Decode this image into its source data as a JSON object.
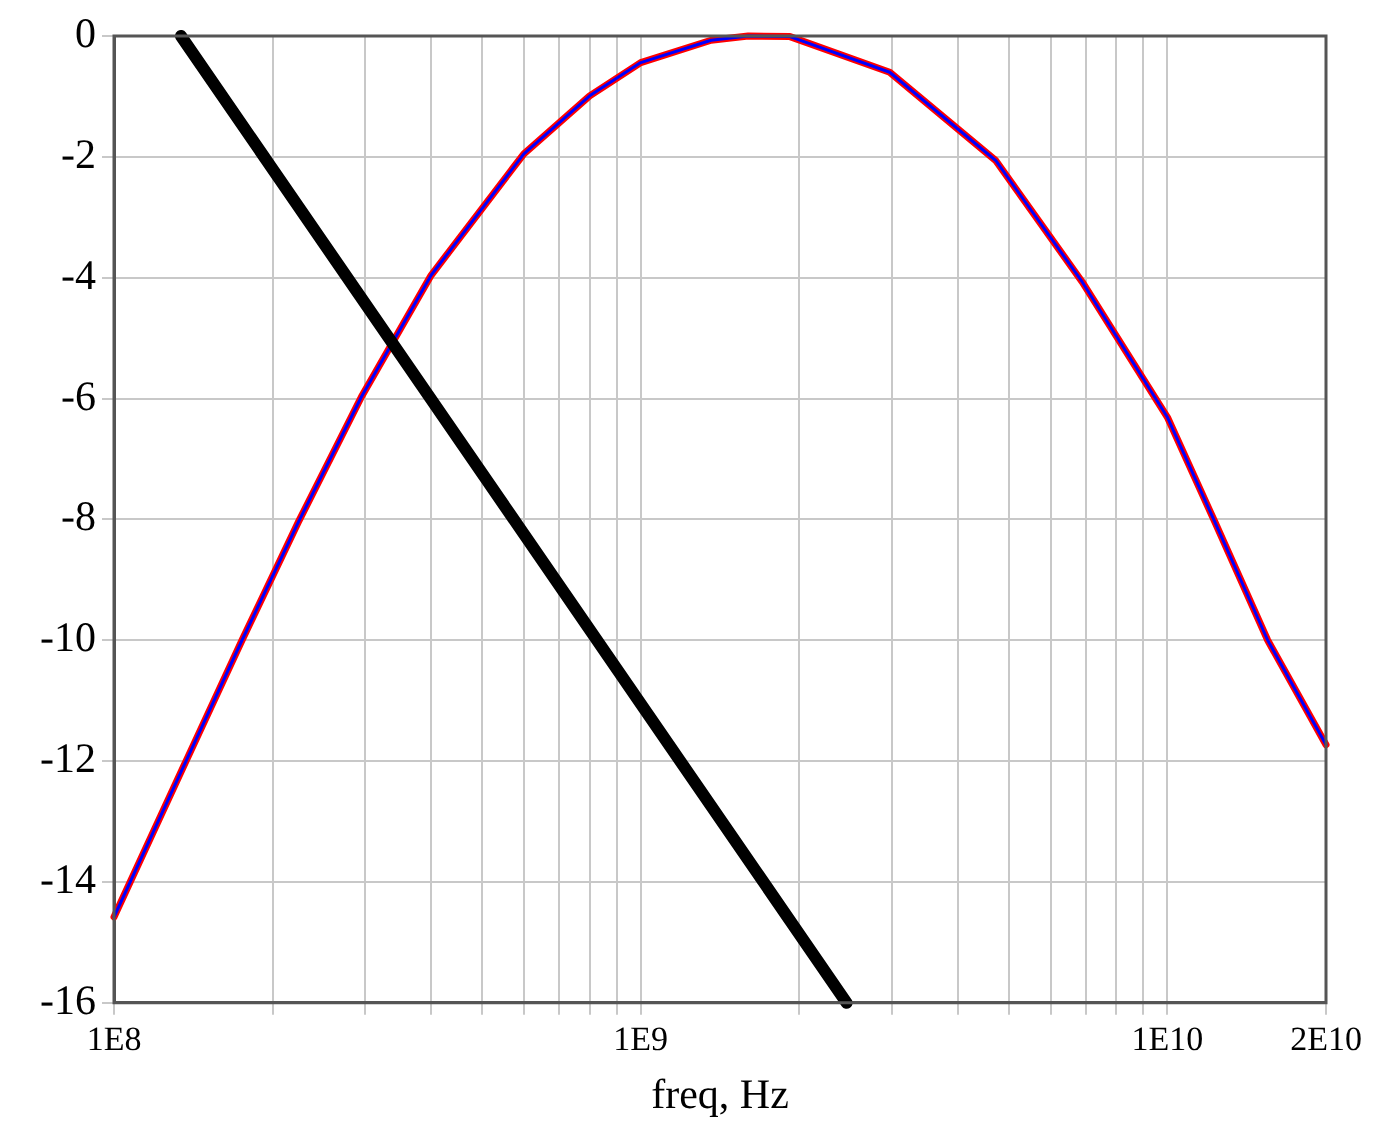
{
  "chart_data": {
    "type": "line",
    "xlabel": "freq, Hz",
    "log": "x",
    "grid": true,
    "legend": false,
    "marker": "none",
    "line_style": "solid",
    "xlim": [
      100000000.0,
      20000000000.0
    ],
    "ylim": [
      -16,
      0
    ],
    "xticks": [
      {
        "value": 100000000.0,
        "label": "1E8"
      },
      {
        "value": 200000000.0,
        "label": null
      },
      {
        "value": 300000000.0,
        "label": null
      },
      {
        "value": 400000000.0,
        "label": null
      },
      {
        "value": 500000000.0,
        "label": null
      },
      {
        "value": 600000000.0,
        "label": null
      },
      {
        "value": 700000000.0,
        "label": null
      },
      {
        "value": 800000000.0,
        "label": null
      },
      {
        "value": 900000000.0,
        "label": null
      },
      {
        "value": 1000000000.0,
        "label": "1E9"
      },
      {
        "value": 2000000000.0,
        "label": null
      },
      {
        "value": 3000000000.0,
        "label": null
      },
      {
        "value": 4000000000.0,
        "label": null
      },
      {
        "value": 5000000000.0,
        "label": null
      },
      {
        "value": 6000000000.0,
        "label": null
      },
      {
        "value": 7000000000.0,
        "label": null
      },
      {
        "value": 8000000000.0,
        "label": null
      },
      {
        "value": 9000000000.0,
        "label": null
      },
      {
        "value": 10000000000.0,
        "label": "1E10"
      },
      {
        "value": 20000000000.0,
        "label": "2E10"
      }
    ],
    "yticks": [
      -16,
      -14,
      -12,
      -10,
      -8,
      -6,
      -4,
      -2,
      0
    ],
    "x": [
      100000000.0,
      137000000.0,
      175000000.0,
      224000000.0,
      295000000.0,
      400000000.0,
      600000000.0,
      800000000.0,
      1000000000.0,
      1360000000.0,
      1600000000.0,
      1920000000.0,
      2970000000.0,
      4720000000.0,
      6890000000.0,
      10000000000.0,
      12300000000.0,
      15500000000.0,
      20000000000.0
    ],
    "series": [
      {
        "color": "#ff0000",
        "values": [
          -14.58,
          -12.0,
          -10.0,
          -8.04,
          -5.97,
          -3.96,
          -1.95,
          -0.99,
          -0.44,
          -0.07,
          0,
          -0.01,
          -0.6,
          -2.06,
          -4.07,
          -6.31,
          -8.04,
          -10.0,
          -11.73
        ]
      },
      {
        "color": "#0000ff",
        "values": [
          -14.58,
          -12.0,
          -10.0,
          -8.04,
          -5.97,
          -3.96,
          -1.95,
          -0.99,
          -0.44,
          -0.07,
          0,
          -0.01,
          -0.6,
          -2.06,
          -4.07,
          -6.31,
          -8.04,
          -10.0,
          -11.73
        ]
      },
      {
        "color": "#000000",
        "x": [
          134000000.0,
          2460000000.0
        ],
        "values": [
          0,
          -16
        ]
      }
    ]
  }
}
